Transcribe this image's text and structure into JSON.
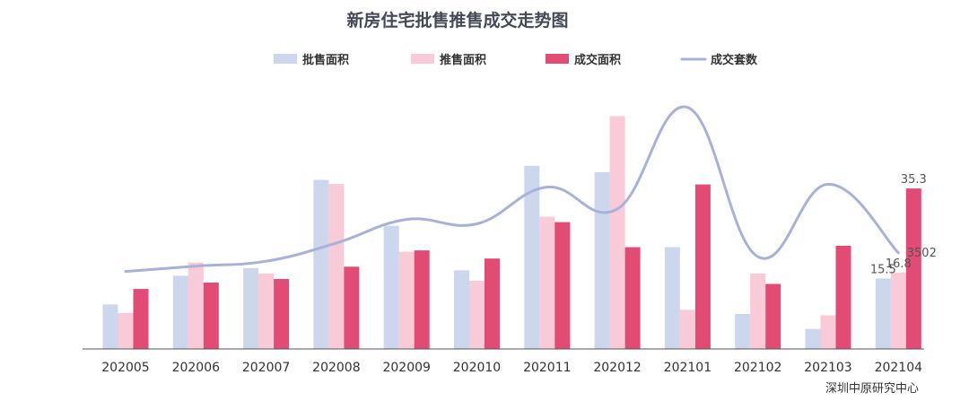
{
  "chart_data": {
    "type": "bar",
    "title": "新房住宅批售推售成交走势图",
    "source": "深圳中原研究中心",
    "categories": [
      "202005",
      "202006",
      "202007",
      "202008",
      "202009",
      "202010",
      "202011",
      "202012",
      "202101",
      "202102",
      "202103",
      "202104"
    ],
    "series": [
      {
        "name": "批售面积",
        "kind": "bar",
        "color": "#ccd6ec",
        "values": [
          9.8,
          16.1,
          17.8,
          37.2,
          27.1,
          17.3,
          40.3,
          38.9,
          22.4,
          7.7,
          4.4,
          15.5
        ]
      },
      {
        "name": "推售面积",
        "kind": "bar",
        "color": "#f9cad8",
        "values": [
          7.9,
          19.0,
          16.6,
          36.3,
          21.4,
          15.0,
          29.1,
          51.2,
          8.6,
          16.6,
          7.4,
          16.8
        ]
      },
      {
        "name": "成交面积",
        "kind": "bar",
        "color": "#e24b73",
        "values": [
          13.2,
          14.6,
          15.4,
          18.1,
          21.7,
          19.9,
          27.9,
          22.4,
          36.2,
          14.3,
          22.7,
          35.3
        ]
      },
      {
        "name": "成交套数",
        "kind": "line",
        "color": "#a8b2d6",
        "values": [
          2825,
          3020,
          3195,
          3860,
          4720,
          4560,
          5900,
          5100,
          8800,
          3360,
          6000,
          3502
        ]
      }
    ],
    "bar_axis_range": [
      0,
      60
    ],
    "line_axis_range": [
      0,
      10000
    ],
    "labels": [
      {
        "category": "202104",
        "series": "批售面积",
        "text": "15.5"
      },
      {
        "category": "202104",
        "series": "推售面积",
        "text": "16.8"
      },
      {
        "category": "202104",
        "series": "成交面积",
        "text": "35.3"
      },
      {
        "category": "202104",
        "series": "成交套数",
        "text": "3502"
      }
    ],
    "grid": false,
    "legend_position": "top-center"
  }
}
